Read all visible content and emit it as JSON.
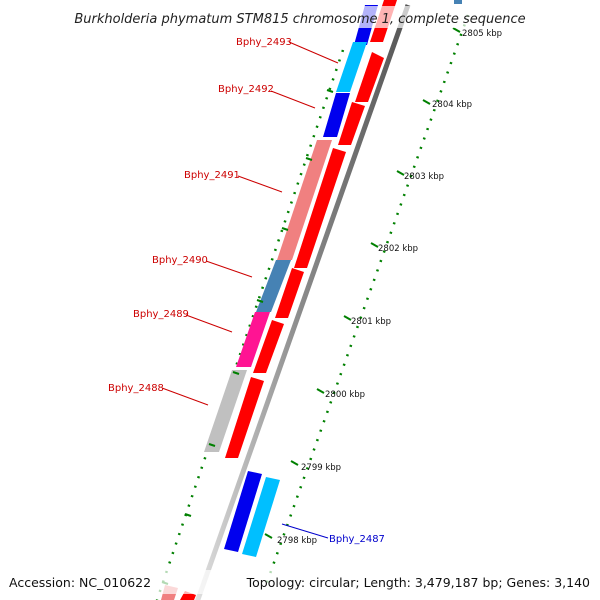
{
  "header": {
    "title": "Burkholderia phymatum STM815 chromosome 1, complete sequence"
  },
  "footer": {
    "accession": "Accession: NC_010622",
    "summary": "Topology: circular; Length: 3,479,187 bp; Genes: 3,140"
  },
  "scale": {
    "unit": "kbp",
    "ticks": [
      "2798 kbp",
      "2799 kbp",
      "2800 kbp",
      "2801 kbp",
      "2802 kbp",
      "2803 kbp",
      "2804 kbp",
      "2805 kbp"
    ]
  },
  "gene_labels": [
    {
      "name": "Bphy_2493",
      "color": "#cc0000"
    },
    {
      "name": "Bphy_2492",
      "color": "#cc0000"
    },
    {
      "name": "Bphy_2491",
      "color": "#cc0000"
    },
    {
      "name": "Bphy_2490",
      "color": "#cc0000"
    },
    {
      "name": "Bphy_2489",
      "color": "#cc0000"
    },
    {
      "name": "Bphy_2488",
      "color": "#cc0000"
    },
    {
      "name": "Bphy_2487",
      "color": "#0000cc"
    }
  ],
  "colors": {
    "forward_cds": "#ff0000",
    "reverse_blue": "#0000ee",
    "reverse_cyan": "#00bfff",
    "reverse_pink": "#f08080",
    "reverse_steel": "#4682b4",
    "reverse_magenta": "#ff1493",
    "reverse_grey": "#c0c0c0",
    "backbone": "#888888",
    "dots": "#008000"
  }
}
